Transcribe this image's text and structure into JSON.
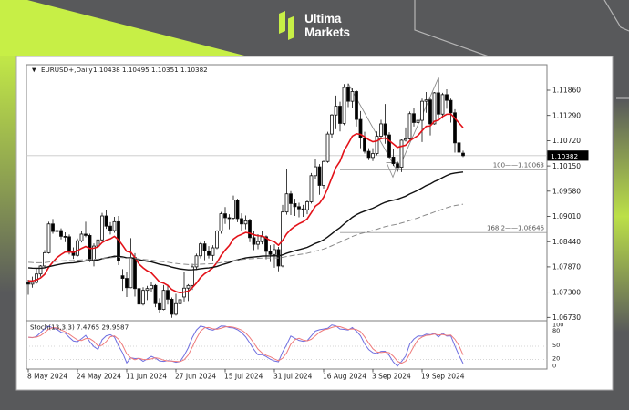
{
  "colors": {
    "background": "#58595b",
    "lime": "#c7ef46",
    "card_bg": "#ffffff",
    "frame": "#7f7f7f",
    "text": "#1a1a1a",
    "candle_up": "#ffffff",
    "candle_down": "#000000",
    "candle_outline": "#111111",
    "ma_fast": "#e31219",
    "ma_mid": "#111111",
    "ma_slow": "#8a8a8a",
    "stoch_k": "#6e6ee0",
    "stoch_d": "#ef7b7b",
    "fib_line": "#999999",
    "last_price_line": "#c8c8c8",
    "decor_line": "#b5b5b5",
    "price_box_bg": "#000000",
    "price_box_text": "#ffffff"
  },
  "header": {
    "brand_line1": "Ultima",
    "brand_line2": "Markets"
  },
  "icons": {
    "symbol_dropdown": "▼"
  },
  "chart": {
    "title": {
      "symbol": "EURUSD+,Daily",
      "ohlc": "1.10438 1.10495 1.10351 1.10382"
    },
    "price_axis": {
      "labels": [
        "1.11860",
        "1.11290",
        "1.10720",
        "1.10150",
        "1.09580",
        "1.09010",
        "1.08440",
        "1.07870",
        "1.07300",
        "1.06730"
      ],
      "current_price": "1.10382"
    },
    "time_axis": {
      "labels": [
        "8 May 2024",
        "24 May 2024",
        "11 Jun 2024",
        "27 Jun 2024",
        "15 Jul 2024",
        "31 Jul 2024",
        "16 Aug 2024",
        "3 Sep 2024",
        "19 Sep 2024"
      ]
    },
    "annotations": [
      {
        "text": "100——1.10063",
        "price": 1.10063
      },
      {
        "text": "168.2——1.08646",
        "price": 1.08646
      }
    ],
    "stoch_panel": {
      "label": "Stoch(13,3,3) 7.4765 29.9587",
      "k_period": 13,
      "slowing": 3,
      "d_period": 3,
      "current_k": 7.4765,
      "current_d": 29.9587,
      "scale_labels": [
        "100",
        "80",
        "50",
        "20",
        "0"
      ],
      "levels": [
        80,
        50,
        20
      ]
    }
  },
  "chart_data": {
    "type": "candlestick",
    "title": "EURUSD+,Daily",
    "x_tick_labels": [
      "8 May 2024",
      "24 May 2024",
      "11 Jun 2024",
      "27 Jun 2024",
      "15 Jul 2024",
      "31 Jul 2024",
      "16 Aug 2024",
      "3 Sep 2024",
      "19 Sep 2024"
    ],
    "x_tick_every": 12,
    "ylim": [
      1.064,
      1.1235
    ],
    "grid": "off",
    "legend": "none",
    "candles": [
      [
        1.0751,
        1.0758,
        1.0724,
        1.0748
      ],
      [
        1.0748,
        1.0765,
        1.074,
        1.0752
      ],
      [
        1.0752,
        1.0784,
        1.0749,
        1.0771
      ],
      [
        1.0771,
        1.0791,
        1.0765,
        1.0789
      ],
      [
        1.0789,
        1.0825,
        1.0785,
        1.0819
      ],
      [
        1.0819,
        1.0889,
        1.0817,
        1.0884
      ],
      [
        1.0884,
        1.0895,
        1.0862,
        1.0867
      ],
      [
        1.0867,
        1.0878,
        1.0855,
        1.0869
      ],
      [
        1.0869,
        1.0874,
        1.0849,
        1.0856
      ],
      [
        1.0856,
        1.0865,
        1.0843,
        1.0855
      ],
      [
        1.0855,
        1.086,
        1.0815,
        1.0822
      ],
      [
        1.0822,
        1.0831,
        1.0805,
        1.0813
      ],
      [
        1.0813,
        1.0851,
        1.081,
        1.0846
      ],
      [
        1.0846,
        1.0868,
        1.0842,
        1.0861
      ],
      [
        1.0861,
        1.0889,
        1.0854,
        1.0858
      ],
      [
        1.0858,
        1.0862,
        1.0798,
        1.0801
      ],
      [
        1.0801,
        1.084,
        1.0788,
        1.0834
      ],
      [
        1.0834,
        1.0857,
        1.0826,
        1.0848
      ],
      [
        1.0848,
        1.0909,
        1.0846,
        1.0902
      ],
      [
        1.0902,
        1.0916,
        1.0873,
        1.0879
      ],
      [
        1.0879,
        1.0888,
        1.086,
        1.0869
      ],
      [
        1.0869,
        1.09,
        1.0864,
        1.0889
      ],
      [
        1.0889,
        1.0902,
        1.0791,
        1.0801
      ],
      [
        1.0767,
        1.0782,
        1.0733,
        1.0761
      ],
      [
        1.0761,
        1.0775,
        1.0719,
        1.074
      ],
      [
        1.074,
        1.0852,
        1.0739,
        1.0808
      ],
      [
        1.0808,
        1.0818,
        1.072,
        1.0738
      ],
      [
        1.0738,
        1.075,
        1.0674,
        1.0703
      ],
      [
        1.0703,
        1.0741,
        1.07,
        1.0734
      ],
      [
        1.0734,
        1.0744,
        1.0712,
        1.0738
      ],
      [
        1.0738,
        1.0752,
        1.0731,
        1.0745
      ],
      [
        1.0745,
        1.0748,
        1.0696,
        1.0704
      ],
      [
        1.0704,
        1.0716,
        1.0684,
        1.0691
      ],
      [
        1.0691,
        1.0746,
        1.0689,
        1.0734
      ],
      [
        1.0734,
        1.0747,
        1.0702,
        1.0714
      ],
      [
        1.0714,
        1.0718,
        1.0672,
        1.068
      ],
      [
        1.068,
        1.0726,
        1.0677,
        1.0704
      ],
      [
        1.0704,
        1.0722,
        1.0686,
        1.0713
      ],
      [
        1.0719,
        1.0776,
        1.0709,
        1.0739
      ],
      [
        1.0739,
        1.0748,
        1.071,
        1.0745
      ],
      [
        1.0745,
        1.0794,
        1.0735,
        1.0787
      ],
      [
        1.0787,
        1.0817,
        1.078,
        1.0812
      ],
      [
        1.0812,
        1.0843,
        1.0806,
        1.0839
      ],
      [
        1.0839,
        1.0845,
        1.0802,
        1.0823
      ],
      [
        1.0823,
        1.0834,
        1.0806,
        1.0813
      ],
      [
        1.0813,
        1.0836,
        1.08,
        1.083
      ],
      [
        1.083,
        1.087,
        1.0827,
        1.0868
      ],
      [
        1.0868,
        1.0911,
        1.0862,
        1.0907
      ],
      [
        1.0907,
        1.0922,
        1.0884,
        1.0898
      ],
      [
        1.0898,
        1.0906,
        1.0872,
        1.0897
      ],
      [
        1.0897,
        1.0948,
        1.0893,
        1.0938
      ],
      [
        1.0938,
        1.0941,
        1.0888,
        1.0896
      ],
      [
        1.0896,
        1.0908,
        1.0868,
        1.0884
      ],
      [
        1.0884,
        1.0903,
        1.0872,
        1.0891
      ],
      [
        1.0891,
        1.0896,
        1.0843,
        1.0853
      ],
      [
        1.0853,
        1.0868,
        1.0825,
        1.0838
      ],
      [
        1.0838,
        1.0861,
        1.0827,
        1.0844
      ],
      [
        1.0844,
        1.0869,
        1.0838,
        1.0855
      ],
      [
        1.0855,
        1.0858,
        1.0804,
        1.0822
      ],
      [
        1.0822,
        1.0836,
        1.0798,
        1.0815
      ],
      [
        1.0815,
        1.0838,
        1.0785,
        1.0826
      ],
      [
        1.0826,
        1.0832,
        1.0777,
        1.0789
      ],
      [
        1.0789,
        1.0927,
        1.0786,
        1.0911
      ],
      [
        1.0911,
        1.1009,
        1.0905,
        1.0952
      ],
      [
        1.0952,
        1.0958,
        1.0904,
        1.093
      ],
      [
        1.093,
        1.0941,
        1.0902,
        1.0923
      ],
      [
        1.0923,
        1.0932,
        1.0899,
        1.0918
      ],
      [
        1.0918,
        1.0927,
        1.09,
        1.0916
      ],
      [
        1.0916,
        1.0938,
        1.0906,
        1.0934
      ],
      [
        1.0934,
        1.0999,
        1.093,
        1.0993
      ],
      [
        1.0993,
        1.103,
        1.0986,
        1.1013
      ],
      [
        1.1013,
        1.1019,
        1.095,
        1.0971
      ],
      [
        1.0971,
        1.1027,
        1.0964,
        1.1025
      ],
      [
        1.1025,
        1.1092,
        1.1022,
        1.1087
      ],
      [
        1.1087,
        1.1132,
        1.1077,
        1.113
      ],
      [
        1.113,
        1.1174,
        1.1098,
        1.115
      ],
      [
        1.115,
        1.116,
        1.1093,
        1.1111
      ],
      [
        1.1111,
        1.12,
        1.1107,
        1.1192
      ],
      [
        1.1192,
        1.1201,
        1.1148,
        1.1161
      ],
      [
        1.1161,
        1.119,
        1.1146,
        1.1183
      ],
      [
        1.1183,
        1.1186,
        1.1104,
        1.112
      ],
      [
        1.112,
        1.1139,
        1.1055,
        1.1078
      ],
      [
        1.1078,
        1.1092,
        1.1043,
        1.1048
      ],
      [
        1.1048,
        1.1055,
        1.1028,
        1.1034
      ],
      [
        1.1034,
        1.1055,
        1.1026,
        1.1043
      ],
      [
        1.1043,
        1.1093,
        1.1039,
        1.1082
      ],
      [
        1.1082,
        1.1119,
        1.1075,
        1.111
      ],
      [
        1.111,
        1.1155,
        1.1065,
        1.1085
      ],
      [
        1.1085,
        1.1091,
        1.1033,
        1.1035
      ],
      [
        1.1035,
        1.1054,
        1.1015,
        1.102
      ],
      [
        1.102,
        1.1025,
        1.1002,
        1.1012
      ],
      [
        1.1012,
        1.1075,
        1.1001,
        1.1073
      ],
      [
        1.1073,
        1.1102,
        1.107,
        1.1076
      ],
      [
        1.1076,
        1.1138,
        1.1074,
        1.1133
      ],
      [
        1.1133,
        1.1146,
        1.1104,
        1.1113
      ],
      [
        1.1113,
        1.119,
        1.1105,
        1.1118
      ],
      [
        1.1118,
        1.1167,
        1.1069,
        1.1161
      ],
      [
        1.1161,
        1.1182,
        1.1135,
        1.1164
      ],
      [
        1.1164,
        1.1168,
        1.1084,
        1.111
      ],
      [
        1.111,
        1.1182,
        1.1108,
        1.118
      ],
      [
        1.118,
        1.1214,
        1.1123,
        1.1132
      ],
      [
        1.1132,
        1.118,
        1.1122,
        1.1176
      ],
      [
        1.1176,
        1.1188,
        1.1144,
        1.1163
      ],
      [
        1.1163,
        1.1167,
        1.1113,
        1.1135
      ],
      [
        1.1135,
        1.1143,
        1.1045,
        1.1067
      ],
      [
        1.1067,
        1.1082,
        1.1024,
        1.1046
      ],
      [
        1.10438,
        1.10495,
        1.10351,
        1.10382
      ]
    ],
    "overlays": [
      {
        "name": "ma_fast",
        "type": "ema",
        "period": 13,
        "seed": 1.0757,
        "dashed": false
      },
      {
        "name": "ma_mid",
        "type": "ema",
        "period": 75,
        "seed": 1.0786,
        "dashed": false
      },
      {
        "name": "ma_slow",
        "type": "ema",
        "period": 150,
        "seed": 1.0798,
        "dashed": true
      }
    ],
    "fib_extension": {
      "start_index": 76,
      "levels": [
        {
          "label": "100",
          "price": 1.10063
        },
        {
          "label": "168.2",
          "price": 1.08646
        }
      ]
    },
    "zigzag": [
      [
        78,
        1.1201
      ],
      [
        90,
        1.1002
      ],
      [
        100,
        1.1214
      ]
    ],
    "last_price": 1.10382
  }
}
